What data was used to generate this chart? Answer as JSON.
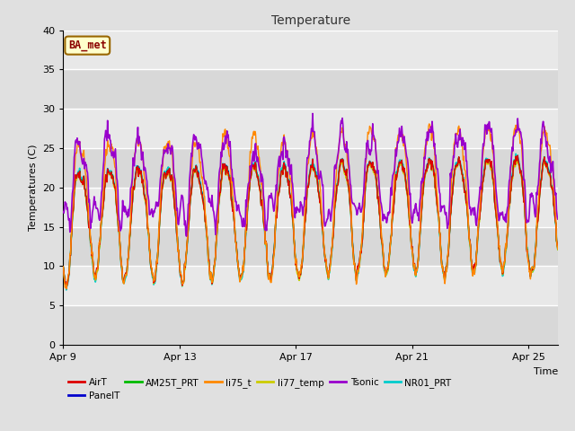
{
  "title": "Temperature",
  "xlabel": "Time",
  "ylabel": "Temperatures (C)",
  "ylim": [
    0,
    40
  ],
  "yticks": [
    0,
    5,
    10,
    15,
    20,
    25,
    30,
    35,
    40
  ],
  "fig_facecolor": "#e0e0e0",
  "plot_bg_color": "#e8e8e8",
  "annotation_text": "BA_met",
  "annotation_bg": "#ffffcc",
  "annotation_border": "#996600",
  "annotation_text_color": "#8b0000",
  "series": [
    {
      "name": "AirT",
      "color": "#dd0000",
      "lw": 1.0,
      "zorder": 4
    },
    {
      "name": "PanelT",
      "color": "#0000cc",
      "lw": 1.0,
      "zorder": 3
    },
    {
      "name": "AM25T_PRT",
      "color": "#00bb00",
      "lw": 1.0,
      "zorder": 3
    },
    {
      "name": "li75_t",
      "color": "#ff8800",
      "lw": 1.0,
      "zorder": 5
    },
    {
      "name": "li77_temp",
      "color": "#cccc00",
      "lw": 1.0,
      "zorder": 3
    },
    {
      "name": "Tsonic",
      "color": "#9900cc",
      "lw": 1.2,
      "zorder": 6
    },
    {
      "name": "NR01_PRT",
      "color": "#00cccc",
      "lw": 1.2,
      "zorder": 2
    }
  ],
  "xtick_labels": [
    "Apr 9",
    "Apr 13",
    "Apr 17",
    "Apr 21",
    "Apr 25"
  ],
  "xtick_pos": [
    0,
    4,
    8,
    12,
    16
  ],
  "xlim": [
    0,
    17
  ],
  "gridcolor": "#ffffff",
  "grid_lw": 1.0,
  "band_colors": [
    "#d8d8d8",
    "#e8e8e8"
  ],
  "seed": 123
}
